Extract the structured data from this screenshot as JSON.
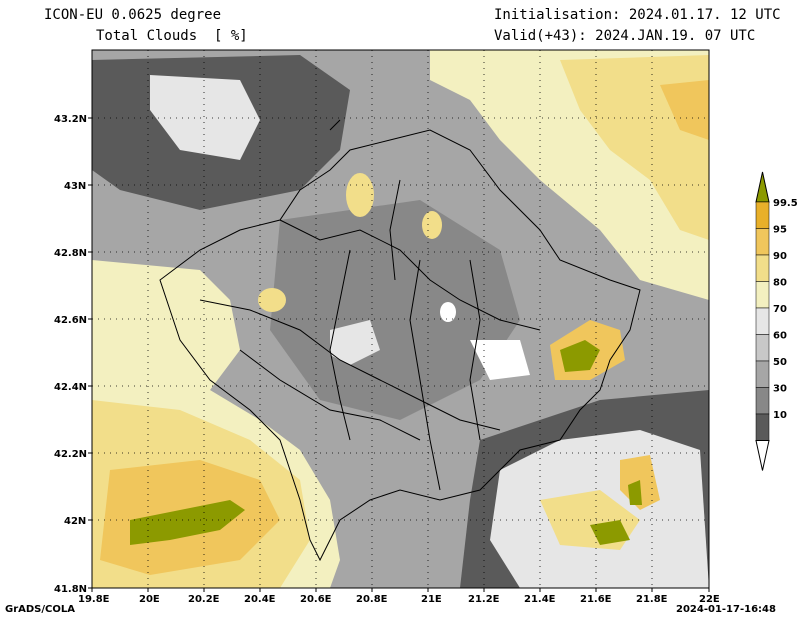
{
  "header": {
    "model": "ICON-EU 0.0625 degree",
    "variable": "Total Clouds  [ %]",
    "initialisation": "Initialisation: 2024.01.17. 12 UTC",
    "valid": "Valid(+43): 2024.JAN.19. 07 UTC"
  },
  "axes": {
    "lon_labels": [
      "19.8E",
      "20E",
      "20.2E",
      "20.4E",
      "20.6E",
      "20.8E",
      "21E",
      "21.2E",
      "21.4E",
      "21.6E",
      "21.8E",
      "22E"
    ],
    "lat_labels": [
      "43.2N",
      "43N",
      "42.8N",
      "42.6N",
      "42.4N",
      "42.2N",
      "42N",
      "41.8N"
    ]
  },
  "colorbar": {
    "labels": [
      "99.5",
      "95",
      "90",
      "80",
      "70",
      "60",
      "50",
      "30",
      "10"
    ],
    "colors": [
      "#8c9a00",
      "#e8b02a",
      "#f0c65c",
      "#f2de8a",
      "#f3f0c0",
      "#e6e6e6",
      "#c8c8c8",
      "#a6a6a6",
      "#888888",
      "#5a5a5a",
      "#ffffff"
    ]
  },
  "footer": {
    "left": "GrADS/COLA",
    "right": "2024-01-17-16:48"
  }
}
